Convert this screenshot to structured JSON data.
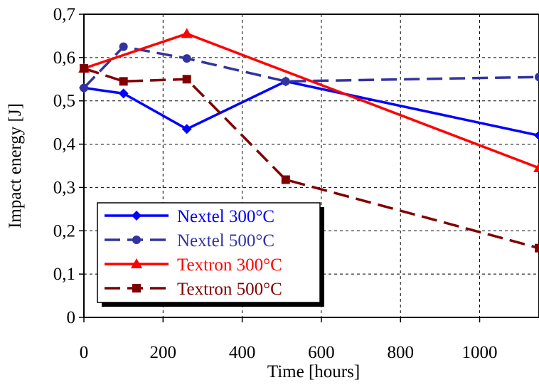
{
  "chart_data": {
    "type": "line",
    "title": "",
    "xlabel": "Time [hours]",
    "ylabel": "Impact energy [J]",
    "xlim": [
      0,
      1150
    ],
    "ylim": [
      0,
      0.7
    ],
    "x_ticks": [
      0,
      200,
      400,
      600,
      800,
      1000
    ],
    "x_tick_labels": [
      "0",
      "200",
      "400",
      "600",
      "800",
      "1000"
    ],
    "y_ticks": [
      0,
      0.1,
      0.2,
      0.3,
      0.4,
      0.5,
      0.6,
      0.7
    ],
    "y_tick_labels": [
      "0",
      "0,1",
      "0,2",
      "0,3",
      "0,4",
      "0,5",
      "0,6",
      "0,7"
    ],
    "grid": true,
    "legend_position": "bottom-left",
    "series": [
      {
        "name": "Nextel 300°C",
        "color": "#0000FF",
        "marker": "diamond",
        "dash": "solid",
        "x": [
          0,
          100,
          260,
          510,
          1150
        ],
        "y": [
          0.53,
          0.517,
          0.435,
          0.545,
          0.42
        ]
      },
      {
        "name": "Nextel 500°C",
        "color": "#3333A0",
        "marker": "circle",
        "dash": "dashed",
        "x": [
          0,
          100,
          260,
          510,
          1150
        ],
        "y": [
          0.53,
          0.625,
          0.598,
          0.545,
          0.555
        ]
      },
      {
        "name": "Textron 300°C",
        "color": "#FF0000",
        "marker": "triangle",
        "dash": "solid",
        "x": [
          0,
          260,
          1150
        ],
        "y": [
          0.575,
          0.655,
          0.345
        ]
      },
      {
        "name": "Textron 500°C",
        "color": "#800000",
        "marker": "square",
        "dash": "dashed",
        "x": [
          0,
          100,
          260,
          510,
          1150
        ],
        "y": [
          0.575,
          0.545,
          0.55,
          0.318,
          0.16
        ]
      }
    ]
  }
}
